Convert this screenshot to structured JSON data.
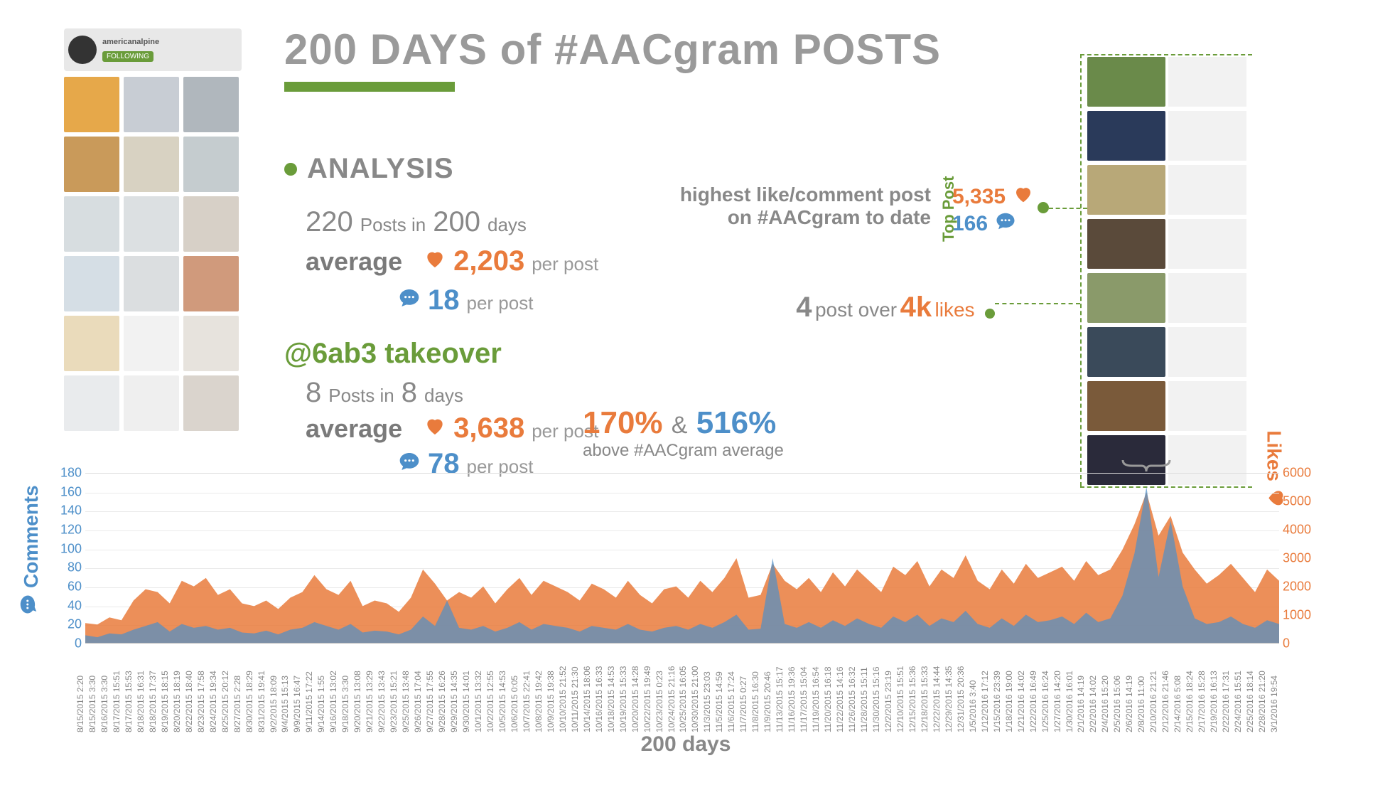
{
  "title": "200 DAYS of #AACgram POSTS",
  "colors": {
    "green": "#6a9c3a",
    "orange": "#e97b3c",
    "blue": "#4d8fc9",
    "grey": "#888888",
    "lightgrey": "#9a9a9a"
  },
  "left_profile": {
    "handle": "americanalpine",
    "badge": "FOLLOWING",
    "thumb_colors": [
      "#e6a84a",
      "#c8cdd4",
      "#b0b7bd",
      "#c99a5a",
      "#d8d2c2",
      "#c5cccf",
      "#d7dde0",
      "#dce0e2",
      "#d7d0c7",
      "#c7d3dc",
      "#cfd3d5",
      "#c07850",
      "#d6b878",
      "#e6e6e6",
      "#cfc7bb",
      "#a8b0b6",
      "#c0c0c0",
      "#6a5238"
    ],
    "fade_start_row": 2
  },
  "analysis": {
    "heading": "ANALYSIS",
    "posts": "220",
    "posts_label": "Posts in",
    "days": "200",
    "days_label": "days",
    "avg_label": "average",
    "likes": "2,203",
    "comments": "18",
    "per_post": "per post"
  },
  "takeover": {
    "heading": "@6ab3 takeover",
    "posts": "8",
    "posts_label": "Posts in",
    "days": "8",
    "days_label": "days",
    "avg_label": "average",
    "likes": "3,638",
    "comments": "78",
    "per_post": "per post"
  },
  "above_avg": {
    "p1": "170%",
    "amp": "&",
    "p2": "516%",
    "sub": "above #AACgram average"
  },
  "callout_top": {
    "line1": "highest like/comment post",
    "line2": "on #AACgram to date",
    "toppost_label": "Top Post",
    "likes": "5,335",
    "comments": "166"
  },
  "callout_4k": {
    "num": "4",
    "text1": "post over",
    "val": "4k",
    "text2": "likes"
  },
  "right_thumbs": {
    "count": 8,
    "colors": [
      "#6a8a4a",
      "#2a3a5a",
      "#b8a878",
      "#5a4a3a",
      "#8a9a6a",
      "#3a4a5a",
      "#7a5a3a",
      "#2a2a3a"
    ]
  },
  "chart": {
    "type": "dual-axis-area",
    "x_title": "200 days",
    "left_axis": {
      "label": "Comments",
      "color": "#4d8fc9",
      "min": 0,
      "max": 180,
      "step": 20
    },
    "right_axis": {
      "label": "Likes",
      "color": "#e97b3c",
      "min": 0,
      "max": 6000,
      "step": 1000
    },
    "fill_opacity_likes": 0.85,
    "fill_opacity_comments": 0.7,
    "x_labels": [
      "8/15/2015 2:20",
      "8/15/2015 3:30",
      "8/16/2015 3:30",
      "8/17/2015 15:51",
      "8/17/2015 15:53",
      "8/18/2015 16:31",
      "8/18/2015 17:37",
      "8/19/2015 18:15",
      "8/20/2015 18:19",
      "8/22/2015 18:40",
      "8/23/2015 17:58",
      "8/24/2015 19:34",
      "8/25/2015 20:12",
      "8/27/2015 2:28",
      "8/30/2015 18:29",
      "8/31/2015 19:41",
      "9/2/2015 18:09",
      "9/4/2015 15:13",
      "9/9/2015 16:47",
      "9/11/2015 17:22",
      "9/14/2015 1:55",
      "9/16/2015 13:02",
      "9/18/2015 3:30",
      "9/20/2015 13:08",
      "9/21/2015 13:29",
      "9/22/2015 13:43",
      "9/23/2015 15:21",
      "9/25/2015 13:48",
      "9/26/2015 17:04",
      "9/27/2015 17:55",
      "9/28/2015 16:26",
      "9/29/2015 14:35",
      "9/30/2015 14:01",
      "10/1/2015 13:32",
      "10/2/2015 12:55",
      "10/5/2015 14:53",
      "10/6/2015 0:05",
      "10/7/2015 22:41",
      "10/8/2015 19:42",
      "10/9/2015 19:38",
      "10/10/2015 21:52",
      "10/11/2015 21:30",
      "10/14/2015 18:06",
      "10/16/2015 16:33",
      "10/18/2015 14:53",
      "10/19/2015 15:33",
      "10/20/2015 14:28",
      "10/22/2015 19:49",
      "10/23/2015 0:23",
      "10/24/2015 21:16",
      "10/25/2015 16:05",
      "10/30/2015 21:00",
      "11/3/2015 23:03",
      "11/5/2015 14:59",
      "11/6/2015 17:24",
      "11/7/2015 0:27",
      "11/8/2015 16:30",
      "11/9/2015 20:46",
      "11/13/2015 15:17",
      "11/16/2015 19:36",
      "11/17/2015 15:04",
      "11/19/2015 16:54",
      "11/20/2015 16:18",
      "11/22/2015 14:16",
      "11/26/2015 16:32",
      "11/28/2015 15:11",
      "11/30/2015 15:16",
      "12/2/2015 23:19",
      "12/10/2015 15:51",
      "12/15/2015 15:36",
      "12/18/2015 15:33",
      "12/22/2015 14:44",
      "12/29/2015 14:35",
      "12/31/2015 20:36",
      "1/5/2016 3:40",
      "1/12/2016 17:12",
      "1/15/2016 23:39",
      "1/18/2016 19:00",
      "1/21/2016 14:02",
      "1/22/2016 16:49",
      "1/25/2016 16:24",
      "1/27/2016 14:20",
      "1/30/2016 16:01",
      "2/1/2016 14:19",
      "2/2/2016 14:02",
      "2/4/2016 15:20",
      "2/5/2016 15:06",
      "2/6/2016 14:19",
      "2/8/2016 11:00",
      "2/10/2016 21:21",
      "2/12/2016 21:46",
      "2/14/2016 5:08",
      "2/15/2016 18:24",
      "2/17/2016 15:28",
      "2/19/2016 16:13",
      "2/22/2016 17:31",
      "2/24/2016 15:51",
      "2/25/2016 18:14",
      "2/28/2016 21:20",
      "3/1/2016 19:54"
    ],
    "likes": [
      700,
      650,
      900,
      800,
      1500,
      1900,
      1800,
      1400,
      2200,
      2000,
      2300,
      1700,
      1900,
      1400,
      1300,
      1500,
      1200,
      1600,
      1800,
      2400,
      1900,
      1700,
      2200,
      1300,
      1500,
      1400,
      1100,
      1600,
      2600,
      2100,
      1500,
      1800,
      1600,
      2000,
      1400,
      1900,
      2300,
      1700,
      2200,
      2000,
      1800,
      1500,
      2100,
      1900,
      1600,
      2200,
      1700,
      1400,
      1900,
      2000,
      1600,
      2200,
      1800,
      2300,
      3000,
      1600,
      1700,
      2800,
      2200,
      1900,
      2300,
      1800,
      2500,
      2000,
      2600,
      2200,
      1800,
      2700,
      2400,
      2900,
      2000,
      2600,
      2300,
      3100,
      2200,
      1900,
      2600,
      2100,
      2800,
      2300,
      2500,
      2700,
      2200,
      2900,
      2400,
      2600,
      3300,
      4200,
      5335,
      3800,
      4500,
      3200,
      2600,
      2100,
      2400,
      2800,
      2300,
      1800,
      2600,
      2200
    ],
    "comments": [
      8,
      6,
      10,
      9,
      14,
      18,
      22,
      12,
      20,
      16,
      18,
      14,
      16,
      11,
      10,
      13,
      9,
      14,
      16,
      22,
      18,
      14,
      20,
      11,
      13,
      12,
      9,
      14,
      28,
      18,
      45,
      16,
      14,
      18,
      12,
      16,
      22,
      14,
      20,
      18,
      16,
      12,
      18,
      16,
      14,
      20,
      14,
      12,
      16,
      18,
      14,
      20,
      16,
      22,
      30,
      14,
      15,
      90,
      20,
      16,
      22,
      16,
      24,
      18,
      26,
      20,
      16,
      28,
      22,
      30,
      18,
      26,
      22,
      34,
      20,
      16,
      26,
      18,
      30,
      22,
      24,
      28,
      20,
      32,
      22,
      26,
      50,
      95,
      166,
      70,
      130,
      60,
      26,
      20,
      22,
      28,
      20,
      16,
      24,
      20
    ]
  }
}
